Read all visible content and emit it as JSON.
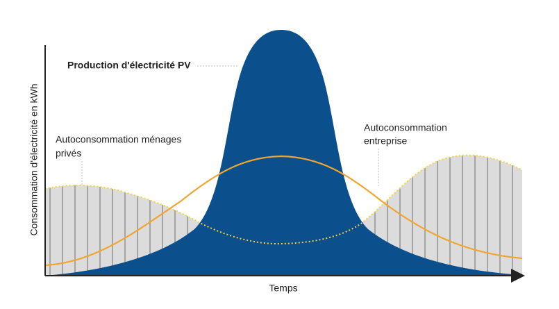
{
  "y_axis": {
    "label": "Consommation d'électricité en kWh"
  },
  "x_axis": {
    "label": "Temps"
  },
  "annotations": {
    "pv": {
      "lines": [
        "Production d'électricité PV"
      ]
    },
    "households": {
      "lines": [
        "Autoconsommation ménages",
        "privés"
      ]
    },
    "business": {
      "lines": [
        "Autoconsommation",
        "entreprise"
      ]
    }
  }
}
